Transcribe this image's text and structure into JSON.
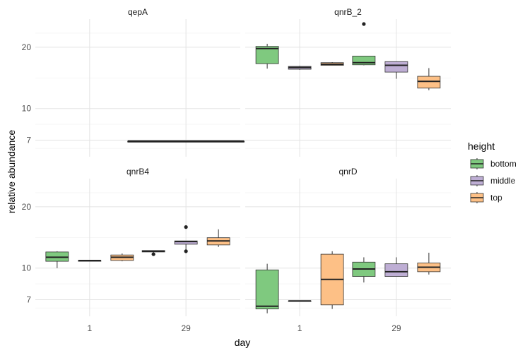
{
  "chart_data": {
    "type": "boxplot",
    "xlabel": "day",
    "ylabel": "relative abundance",
    "y_scale": "log",
    "y_ticks": [
      7,
      10,
      20
    ],
    "categories": [
      "1",
      "29"
    ],
    "grid": true,
    "legend": {
      "title": "height",
      "position": "right",
      "entries": [
        {
          "name": "bottom",
          "color": "#7fc97f"
        },
        {
          "name": "middle",
          "color": "#beaed4"
        },
        {
          "name": "top",
          "color": "#fdc086"
        }
      ]
    },
    "panels": [
      {
        "title": "qepA",
        "boxes": [
          {
            "day": "29",
            "group": "all",
            "wide": true,
            "min": 6.9,
            "q1": 6.9,
            "median": 6.9,
            "q3": 6.9,
            "max": 6.9,
            "outliers": []
          }
        ]
      },
      {
        "title": "qnrB_2",
        "boxes": [
          {
            "day": "1",
            "group": "bottom",
            "min": 15.7,
            "q1": 16.6,
            "median": 19.7,
            "q3": 20.2,
            "max": 20.8,
            "outliers": []
          },
          {
            "day": "1",
            "group": "middle",
            "min": 15.5,
            "q1": 15.6,
            "median": 15.9,
            "q3": 16.1,
            "max": 16.2,
            "outliers": []
          },
          {
            "day": "1",
            "group": "top",
            "min": 16.3,
            "q1": 16.3,
            "median": 16.5,
            "q3": 16.8,
            "max": 16.9,
            "outliers": []
          },
          {
            "day": "29",
            "group": "bottom",
            "min": 16.3,
            "q1": 16.4,
            "median": 16.8,
            "q3": 18.1,
            "max": 18.1,
            "outliers": [
              26.0
            ]
          },
          {
            "day": "29",
            "group": "middle",
            "min": 14.0,
            "q1": 15.1,
            "median": 16.3,
            "q3": 17.0,
            "max": 17.0,
            "outliers": []
          },
          {
            "day": "29",
            "group": "top",
            "min": 12.3,
            "q1": 12.6,
            "median": 13.6,
            "q3": 14.4,
            "max": 15.8,
            "outliers": []
          }
        ]
      },
      {
        "title": "qnrB4",
        "boxes": [
          {
            "day": "1",
            "group": "bottom",
            "min": 10.0,
            "q1": 10.8,
            "median": 11.3,
            "q3": 12.0,
            "max": 12.1,
            "outliers": []
          },
          {
            "day": "1",
            "group": "middle",
            "min": 10.8,
            "q1": 10.8,
            "median": 10.9,
            "q3": 10.9,
            "max": 10.9,
            "outliers": []
          },
          {
            "day": "1",
            "group": "top",
            "min": 10.8,
            "q1": 10.9,
            "median": 11.3,
            "q3": 11.6,
            "max": 11.8,
            "outliers": []
          },
          {
            "day": "29",
            "group": "bottom",
            "min": 11.9,
            "q1": 12.0,
            "median": 12.1,
            "q3": 12.2,
            "max": 12.2,
            "outliers": [
              11.7
            ]
          },
          {
            "day": "29",
            "group": "middle",
            "min": 12.1,
            "q1": 13.1,
            "median": 13.5,
            "q3": 13.6,
            "max": 13.6,
            "outliers": [
              12.1,
              15.9
            ]
          },
          {
            "day": "29",
            "group": "top",
            "min": 12.7,
            "q1": 13.0,
            "median": 13.6,
            "q3": 14.1,
            "max": 15.5,
            "outliers": []
          }
        ]
      },
      {
        "title": "qnrD",
        "boxes": [
          {
            "day": "1",
            "group": "bottom",
            "min": 6.0,
            "q1": 6.3,
            "median": 6.5,
            "q3": 9.8,
            "max": 10.5,
            "outliers": []
          },
          {
            "day": "1",
            "group": "middle",
            "min": 6.9,
            "q1": 6.9,
            "median": 6.9,
            "q3": 6.9,
            "max": 6.9,
            "outliers": []
          },
          {
            "day": "1",
            "group": "top",
            "min": 6.3,
            "q1": 6.6,
            "median": 8.8,
            "q3": 11.7,
            "max": 12.1,
            "outliers": []
          },
          {
            "day": "29",
            "group": "bottom",
            "min": 8.5,
            "q1": 9.1,
            "median": 9.9,
            "q3": 10.7,
            "max": 11.3,
            "outliers": []
          },
          {
            "day": "29",
            "group": "middle",
            "min": 9.1,
            "q1": 9.1,
            "median": 9.6,
            "q3": 10.5,
            "max": 11.3,
            "outliers": []
          },
          {
            "day": "29",
            "group": "top",
            "min": 9.3,
            "q1": 9.6,
            "median": 10.1,
            "q3": 10.6,
            "max": 11.9,
            "outliers": []
          }
        ]
      }
    ]
  }
}
